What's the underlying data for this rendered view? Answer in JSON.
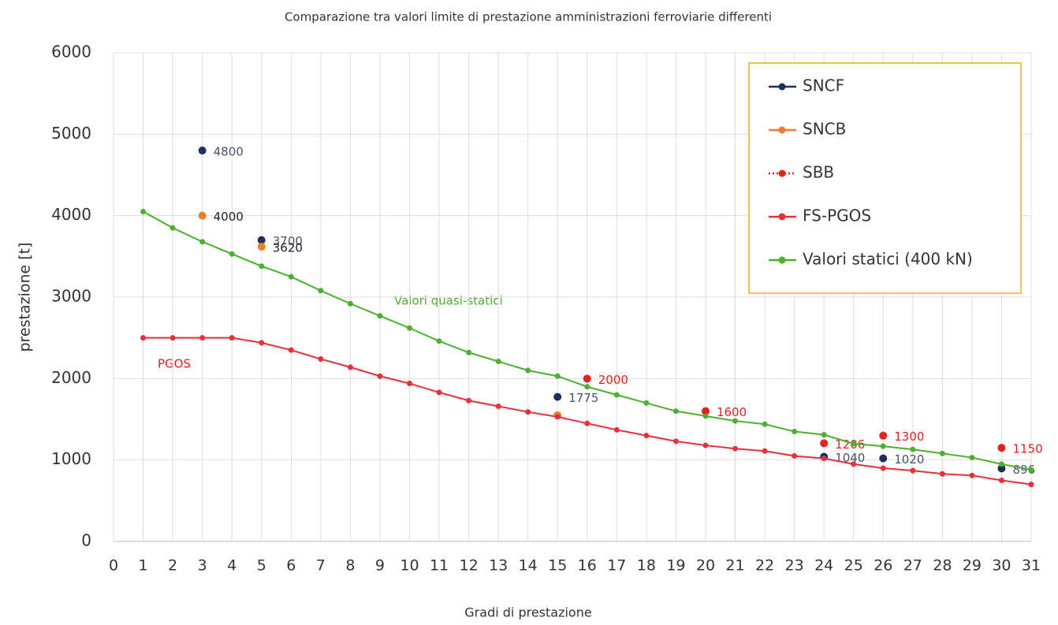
{
  "chart_data": {
    "type": "line",
    "title": "Comparazione tra valori limite di prestazione amministrazioni ferroviarie differenti",
    "x_label": "Gradi di prestazione",
    "y_label": "prestazione [t]",
    "xlim": [
      0,
      31
    ],
    "xticks": [
      0,
      1,
      2,
      3,
      4,
      5,
      6,
      7,
      8,
      9,
      10,
      11,
      12,
      13,
      14,
      15,
      16,
      17,
      18,
      19,
      20,
      21,
      22,
      23,
      24,
      25,
      26,
      27,
      28,
      29,
      30,
      31
    ],
    "ylim": [
      0,
      6000
    ],
    "yticks": [
      0,
      1000,
      2000,
      3000,
      4000,
      5000,
      6000
    ],
    "grid": true,
    "legend": "top-right",
    "annotations": [
      "Valori quasi-statici",
      "PGOS"
    ],
    "series": [
      {
        "name": "SNCF",
        "type": "scatter",
        "style": "solid",
        "color": "#1f2d5c",
        "label_color": "#44546a",
        "x": [
          3,
          5,
          15,
          24,
          26,
          30
        ],
        "values": [
          4800,
          3700,
          1775,
          1040,
          1020,
          896
        ]
      },
      {
        "name": "SNCB",
        "type": "scatter",
        "style": "solid",
        "color": "#ed7d31",
        "label_color": "#222222",
        "x": [
          3,
          5,
          15
        ],
        "values": [
          4000,
          3620,
          1550
        ],
        "value_labels": [
          "4000",
          "3620",
          null
        ]
      },
      {
        "name": "SBB",
        "type": "scatter",
        "style": "dotted",
        "color": "#e8201e",
        "label_color": "#e8201e",
        "x": [
          16,
          20,
          24,
          26,
          30
        ],
        "values": [
          2000,
          1600,
          1206,
          1300,
          1150
        ]
      },
      {
        "name": "FS-PGOS",
        "type": "line",
        "style": "solid",
        "color": "#e8303a",
        "x": [
          1,
          2,
          3,
          4,
          5,
          6,
          7,
          8,
          9,
          10,
          11,
          12,
          13,
          14,
          15,
          16,
          17,
          18,
          19,
          20,
          21,
          22,
          23,
          24,
          25,
          26,
          27,
          28,
          29,
          30,
          31
        ],
        "values": [
          2500,
          2500,
          2500,
          2500,
          2440,
          2350,
          2240,
          2140,
          2030,
          1940,
          1830,
          1730,
          1660,
          1590,
          1530,
          1450,
          1370,
          1300,
          1230,
          1180,
          1140,
          1110,
          1050,
          1020,
          950,
          900,
          870,
          830,
          810,
          750,
          700
        ]
      },
      {
        "name": "Valori statici (400 kN)",
        "type": "line",
        "style": "solid",
        "color": "#4caf2f",
        "x": [
          1,
          2,
          3,
          4,
          5,
          6,
          7,
          8,
          9,
          10,
          11,
          12,
          13,
          14,
          15,
          16,
          17,
          18,
          19,
          20,
          21,
          22,
          23,
          24,
          25,
          26,
          27,
          28,
          29,
          30,
          31
        ],
        "values": [
          4050,
          3850,
          3680,
          3530,
          3380,
          3250,
          3080,
          2920,
          2770,
          2620,
          2460,
          2320,
          2210,
          2100,
          2030,
          1900,
          1800,
          1700,
          1600,
          1540,
          1480,
          1440,
          1350,
          1310,
          1200,
          1170,
          1130,
          1080,
          1030,
          950,
          880
        ]
      }
    ]
  }
}
